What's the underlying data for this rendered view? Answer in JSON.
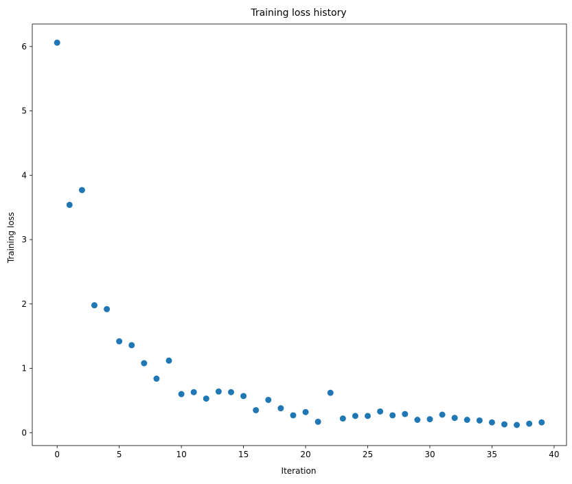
{
  "chart_data": {
    "type": "scatter",
    "title": "Training loss history",
    "xlabel": "Iteration",
    "ylabel": "Training loss",
    "xlim": [
      -2,
      41
    ],
    "ylim": [
      -0.2,
      6.35
    ],
    "xticks": [
      0,
      5,
      10,
      15,
      20,
      25,
      30,
      35,
      40
    ],
    "yticks": [
      0,
      1,
      2,
      3,
      4,
      5,
      6
    ],
    "grid": false,
    "marker_color": "#1f77b4",
    "x": [
      0,
      1,
      2,
      3,
      4,
      5,
      6,
      7,
      8,
      9,
      10,
      11,
      12,
      13,
      14,
      15,
      16,
      17,
      18,
      19,
      20,
      21,
      22,
      23,
      24,
      25,
      26,
      27,
      28,
      29,
      30,
      31,
      32,
      33,
      34,
      35,
      36,
      37,
      38,
      39
    ],
    "y": [
      6.06,
      3.54,
      3.77,
      1.98,
      1.92,
      1.42,
      1.36,
      1.08,
      0.84,
      1.12,
      0.6,
      0.63,
      0.53,
      0.64,
      0.63,
      0.57,
      0.35,
      0.51,
      0.38,
      0.27,
      0.32,
      0.17,
      0.62,
      0.22,
      0.26,
      0.26,
      0.33,
      0.27,
      0.29,
      0.2,
      0.21,
      0.28,
      0.23,
      0.2,
      0.19,
      0.16,
      0.13,
      0.12,
      0.14,
      0.16
    ]
  }
}
